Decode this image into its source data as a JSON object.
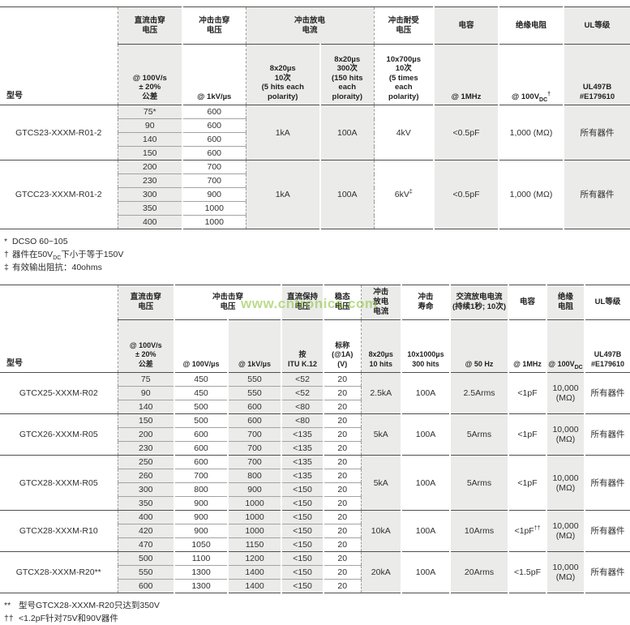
{
  "colors": {
    "column_gray": "#ebebea",
    "line_dark": "#4f4f4f",
    "line_light": "#a3a3a3",
    "watermark_green": "#8dc63f"
  },
  "watermark": {
    "text": "www.cntronics.com"
  },
  "table1": {
    "titles": {
      "model": "型号",
      "dc": "直流击穿\n电压",
      "imp": "冲击击穿\n电压",
      "dis": "冲击放电\n电流",
      "withstand": "冲击耐受\n电压",
      "cap": "电容",
      "ins": "绝缘电阻",
      "ul": "UL等级"
    },
    "cond": {
      "dc": "@ 100V/s\n± 20%\n公差",
      "imp": "@ 1kV/µs",
      "dis1": "8x20µs\n10次\n(5 hits each\npolarity)",
      "dis2": "8x20µs\n300次\n(150 hits\neach\nploraity)",
      "withstand": "10x700µs\n10次\n(5 times\neach\npolarity)",
      "cap": "@ 1MHz",
      "ins_pre": "@ 100V",
      "ins_sub": "DC",
      "ins_sup": "†",
      "ul": "UL497B\n#E179610"
    },
    "groups": [
      {
        "model": "GTCS23-XXXM-R01-2",
        "rows": [
          [
            "75*",
            "600"
          ],
          [
            "90",
            "600"
          ],
          [
            "140",
            "600"
          ],
          [
            "150",
            "600"
          ]
        ],
        "merged": [
          "1kA",
          "100A",
          "4kV",
          "<0.5pF",
          "1,000 (MΩ)",
          "所有器件"
        ]
      },
      {
        "model": "GTCC23-XXXM-R01-2",
        "rows": [
          [
            "200",
            "700"
          ],
          [
            "230",
            "700"
          ],
          [
            "300",
            "900"
          ],
          [
            "350",
            "1000"
          ],
          [
            "400",
            "1000"
          ]
        ],
        "merged": [
          "1kA",
          "100A",
          {
            "text": "6kV",
            "sup": "‡"
          },
          "<0.5pF",
          "1,000 (MΩ)",
          "所有器件"
        ]
      }
    ],
    "footnotes": [
      {
        "sym": "*",
        "text": "DCSO 60~105"
      },
      {
        "sym": "†",
        "pre": "器件在50V",
        "sub": "DC",
        "post": "下小于等于150V"
      },
      {
        "sym": "‡",
        "text": "有效输出阻抗：40ohms"
      }
    ]
  },
  "table2": {
    "titles": {
      "model": "型号",
      "dc": "直流击穿\n电压",
      "imp": "冲击击穿\n电压",
      "hold": "直流保持\n电压",
      "steady": "稳态\n电压",
      "surge": "冲击\n放电\n电流",
      "life": "冲击\n寿命",
      "ac": "交流放电电流\n(持续1秒; 10次)",
      "cap": "电容",
      "ins": "绝缘\n电阻",
      "ul": "UL等级"
    },
    "cond": {
      "dc": "@ 100V/s\n± 20%\n公差",
      "v100": "@ 100V/µs",
      "v1k": "@ 1kV/µs",
      "itu": "按\nITU K.12",
      "nominal": "标称 (@1A)\n(V)",
      "surge": "8x20µs\n10 hits",
      "life": "10x1000µs\n300 hits",
      "ac": "@ 50 Hz",
      "cap": "@ 1MHz",
      "ins_pre": "@ 100V",
      "ins_sub": "DC",
      "ul": "UL497B\n#E179610"
    },
    "groups": [
      {
        "model": "GTCX25-XXXM-R02",
        "rows": [
          [
            "75",
            "450",
            "550",
            "<52",
            "20"
          ],
          [
            "90",
            "450",
            "550",
            "<52",
            "20"
          ],
          [
            "140",
            "500",
            "600",
            "<80",
            "20"
          ]
        ],
        "merged": [
          "2.5kA",
          "100A",
          "2.5Arms",
          "<1pF",
          "10,000 (MΩ)",
          "所有器件"
        ]
      },
      {
        "model": "GTCX26-XXXM-R05",
        "rows": [
          [
            "150",
            "500",
            "600",
            "<80",
            "20"
          ],
          [
            "200",
            "600",
            "700",
            "<135",
            "20"
          ],
          [
            "230",
            "600",
            "700",
            "<135",
            "20"
          ]
        ],
        "merged": [
          "5kA",
          "100A",
          "5Arms",
          "<1pF",
          "10,000 (MΩ)",
          "所有器件"
        ]
      },
      {
        "model": "GTCX28-XXXM-R05",
        "rows": [
          [
            "250",
            "600",
            "700",
            "<135",
            "20"
          ],
          [
            "260",
            "700",
            "800",
            "<135",
            "20"
          ],
          [
            "300",
            "800",
            "900",
            "<150",
            "20"
          ],
          [
            "350",
            "900",
            "1000",
            "<150",
            "20"
          ]
        ],
        "merged": [
          "5kA",
          "100A",
          "5Arms",
          "<1pF",
          "10,000 (MΩ)",
          "所有器件"
        ]
      },
      {
        "model": "GTCX28-XXXM-R10",
        "rows": [
          [
            "400",
            "900",
            "1000",
            "<150",
            "20"
          ],
          [
            "420",
            "900",
            "1000",
            "<150",
            "20"
          ],
          [
            "470",
            "1050",
            "1150",
            "<150",
            "20"
          ]
        ],
        "merged": [
          "10kA",
          "100A",
          "10Arms",
          {
            "text": "<1pF",
            "sup": "††"
          },
          "10,000 (MΩ)",
          "所有器件"
        ]
      },
      {
        "model": "GTCX28-XXXM-R20**",
        "rows": [
          [
            "500",
            "1100",
            "1200",
            "<150",
            "20"
          ],
          [
            "550",
            "1300",
            "1400",
            "<150",
            "20"
          ],
          [
            "600",
            "1300",
            "1400",
            "<150",
            "20"
          ]
        ],
        "merged": [
          "20kA",
          "100A",
          "20Arms",
          "<1.5pF",
          "10,000 (MΩ)",
          "所有器件"
        ]
      }
    ],
    "footnotes": [
      {
        "sym": "**",
        "text": "型号GTCX28-XXXM-R20只达到350V"
      },
      {
        "sym": "††",
        "text": "<1.2pF针对75V和90V器件"
      }
    ]
  }
}
